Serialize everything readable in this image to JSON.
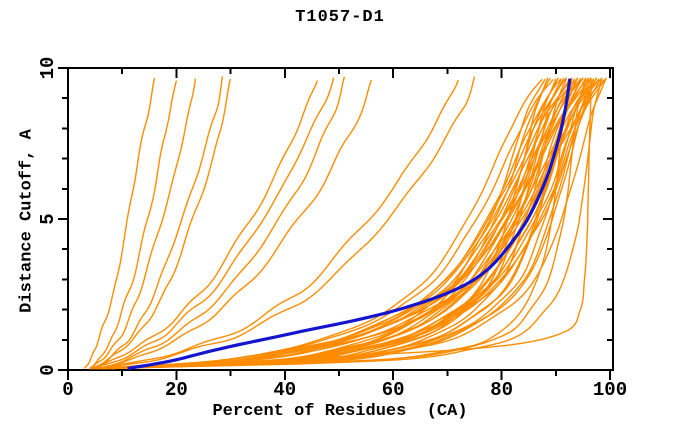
{
  "title": "T1057-D1",
  "colors": {
    "background": "#ffffff",
    "axis": "#000000",
    "text": "#000000",
    "model_line": "#ff8c00",
    "highlight_line": "#1515cf"
  },
  "chart_data": {
    "type": "line",
    "title": "T1057-D1",
    "xlabel": "Percent of Residues  (CA)",
    "ylabel": "Distance Cutoff, A",
    "xlim": [
      0,
      100.5
    ],
    "ylim": [
      0,
      10
    ],
    "grid": false,
    "legend": "none",
    "x_major_ticks": [
      0,
      20,
      40,
      60,
      80,
      100
    ],
    "x_minor_ticks": [
      10,
      30,
      50,
      70,
      90
    ],
    "x_tick_labels": [
      "0",
      "20",
      "40",
      "60",
      "80",
      "100"
    ],
    "y_major_ticks": [
      0,
      5,
      10
    ],
    "y_minor_ticks": [
      1,
      2,
      3,
      4,
      6,
      7,
      8,
      9
    ],
    "y_tick_labels": [
      "0",
      "5",
      "10"
    ],
    "y_levels": [
      0.05,
      0.3,
      0.7,
      1.2,
      2,
      3,
      4.5,
      6,
      7.5,
      8.7,
      9.65
    ],
    "series": [
      {
        "id": "m01",
        "jag": 1.0,
        "x": [
          4,
          27.4,
          39.9,
          49.9,
          59.1,
          66.2,
          72.1,
          76.6,
          80.4,
          83.7,
          87.5
        ]
      },
      {
        "id": "m02",
        "jag": 1.0,
        "x": [
          6,
          36.3,
          49.5,
          58.5,
          65.9,
          71.6,
          76.5,
          80.2,
          82.7,
          85.1,
          88
        ]
      },
      {
        "id": "m03",
        "jag": 1.0,
        "x": [
          5,
          42.6,
          56.8,
          65.1,
          71.8,
          76.8,
          80.2,
          82.7,
          84.8,
          86.4,
          88.5
        ]
      },
      {
        "id": "m04",
        "jag": 1.0,
        "x": [
          7,
          37.3,
          50.5,
          59.5,
          66.9,
          72.6,
          77.5,
          81.2,
          83.7,
          86.1,
          89
        ]
      },
      {
        "id": "m05",
        "jag": 1.0,
        "x": [
          4,
          27.9,
          40.8,
          51,
          60.4,
          67.7,
          73.7,
          78.4,
          82.2,
          85.7,
          89.5
        ]
      },
      {
        "id": "m06",
        "jag": 1.0,
        "x": [
          6,
          43.8,
          58.1,
          66.5,
          73.2,
          78.2,
          81.6,
          84.1,
          86.2,
          87.9,
          90
        ]
      },
      {
        "id": "m07",
        "jag": 1.0,
        "x": [
          5,
          36.6,
          50.3,
          59.7,
          67.4,
          73.4,
          78.5,
          82.4,
          85,
          87.5,
          90.5
        ]
      },
      {
        "id": "m08",
        "jag": 1.0,
        "x": [
          8,
          31.2,
          43.7,
          53.7,
          62.8,
          69.8,
          75.7,
          80.2,
          83.9,
          87.3,
          91
        ]
      },
      {
        "id": "m09",
        "jag": 1.0,
        "x": [
          4,
          43.2,
          57.9,
          66.6,
          73.6,
          78.8,
          82.3,
          84.9,
          87.1,
          88.8,
          91
        ]
      },
      {
        "id": "m10",
        "jag": 1.0,
        "x": [
          6,
          37.6,
          51.3,
          60.7,
          68.4,
          74.4,
          79.5,
          83.4,
          86,
          88.5,
          91.5
        ]
      },
      {
        "id": "m11",
        "jag": 1.0,
        "x": [
          5,
          29.4,
          42.4,
          52.9,
          62.4,
          69.8,
          75.9,
          80.7,
          84.6,
          88.1,
          92
        ]
      },
      {
        "id": "m12",
        "jag": 1.0,
        "x": [
          7,
          45.3,
          59.7,
          68.2,
          75,
          80.1,
          83.5,
          86.1,
          88.2,
          89.9,
          92
        ]
      },
      {
        "id": "m13",
        "jag": 1.0,
        "x": [
          6,
          38,
          51.8,
          61.4,
          69.1,
          75.2,
          80.4,
          84.3,
          86.9,
          89.5,
          92.5
        ]
      },
      {
        "id": "m14",
        "jag": 1.0,
        "x": [
          4,
          28.9,
          42.3,
          53,
          62.7,
          70.3,
          76.5,
          81.4,
          85.4,
          89,
          93
        ]
      },
      {
        "id": "m15",
        "jag": 1.0,
        "x": [
          8,
          54.8,
          71.8,
          79.4,
          83.7,
          86.6,
          88.8,
          90,
          90.9,
          91.7,
          93
        ]
      },
      {
        "id": "m16",
        "jag": 1.0,
        "x": [
          5,
          37.7,
          51.9,
          61.6,
          69.6,
          75.8,
          81.1,
          85.1,
          87.8,
          90.4,
          93.5
        ]
      },
      {
        "id": "m17",
        "jag": 1.0,
        "x": [
          6,
          30.5,
          43.6,
          54.1,
          63.8,
          71.2,
          77.3,
          82.1,
          86.1,
          89.6,
          93.5
        ]
      },
      {
        "id": "m18",
        "jag": 1.0,
        "x": [
          7,
          46.2,
          60.9,
          69.6,
          76.6,
          81.8,
          85.3,
          87.9,
          90.1,
          91.8,
          94
        ]
      },
      {
        "id": "m19",
        "jag": 1.0,
        "x": [
          4,
          37.3,
          51.7,
          61.6,
          69.7,
          76,
          81.4,
          85.5,
          88.2,
          90.9,
          94
        ]
      },
      {
        "id": "m20",
        "jag": 1.0,
        "x": [
          6,
          30.8,
          44.1,
          54.7,
          64.4,
          71.9,
          78.1,
          83,
          87,
          90.5,
          94.5
        ]
      },
      {
        "id": "m21",
        "jag": 1.0,
        "x": [
          5,
          45.3,
          60.5,
          69.4,
          76.6,
          82,
          85.6,
          88.2,
          90.5,
          92.3,
          94.5
        ]
      },
      {
        "id": "m22",
        "jag": 1.0,
        "x": [
          8,
          40.2,
          54.1,
          63.7,
          71.5,
          77.6,
          82.8,
          86.7,
          89.3,
          92,
          95
        ]
      },
      {
        "id": "m23",
        "jag": 1.0,
        "x": [
          6,
          30.9,
          44.3,
          55,
          64.7,
          72.3,
          78.5,
          83.4,
          87.4,
          91,
          95
        ]
      },
      {
        "id": "m24",
        "jag": 1.0,
        "x": [
          4,
          54.3,
          72.6,
          80.9,
          85.4,
          88.6,
          90.9,
          92.3,
          93.2,
          94.1,
          95.5
        ]
      },
      {
        "id": "m25",
        "jag": 1.0,
        "x": [
          7,
          39.7,
          53.9,
          63.6,
          71.6,
          77.8,
          83.1,
          87.1,
          89.8,
          92.4,
          95.5
        ]
      },
      {
        "id": "m26",
        "jag": 1.0,
        "x": [
          5,
          30.5,
          44.1,
          55.1,
          65.1,
          72.8,
          79.2,
          84.2,
          88.3,
          91.9,
          96
        ]
      },
      {
        "id": "m27",
        "jag": 1.0,
        "x": [
          6,
          46.5,
          61.8,
          70.8,
          78,
          83.4,
          87,
          89.7,
          92,
          93.8,
          96
        ]
      },
      {
        "id": "m28",
        "jag": 1.0,
        "x": [
          8,
          40.7,
          54.9,
          64.6,
          72.6,
          78.8,
          84.1,
          88.1,
          90.8,
          93.4,
          96.5
        ]
      },
      {
        "id": "m29",
        "jag": 1.0,
        "x": [
          4,
          29.9,
          43.8,
          54.9,
          65.1,
          72.9,
          79.4,
          84.5,
          88.6,
          92.3,
          96.5
        ]
      },
      {
        "id": "m30",
        "jag": 1.0,
        "x": [
          6,
          47,
          62.4,
          71.5,
          78.8,
          84.3,
          87.9,
          90.6,
          92.9,
          94.7,
          97
        ]
      },
      {
        "id": "m31",
        "jag": 1.0,
        "x": [
          5,
          39,
          53.8,
          63.9,
          72.2,
          78.6,
          84.1,
          88.3,
          91,
          93.8,
          97
        ]
      },
      {
        "id": "m32",
        "jag": 1.0,
        "x": [
          7,
          32.3,
          45.9,
          56.8,
          66.7,
          74.4,
          80.8,
          85.7,
          89.8,
          93.4,
          97.5
        ]
      },
      {
        "id": "m33",
        "jag": 1.0,
        "x": [
          6,
          47.2,
          62.7,
          71.9,
          79.2,
          84.7,
          88.4,
          91.1,
          93.4,
          95.2,
          97.5
        ]
      },
      {
        "id": "m34",
        "jag": 1.0,
        "x": [
          4,
          38.8,
          53.8,
          64.2,
          72.6,
          79.2,
          84.8,
          89.1,
          91.9,
          94.7,
          98
        ]
      },
      {
        "id": "m35",
        "jag": 1.0,
        "x": [
          8,
          33.2,
          46.7,
          57.5,
          67.4,
          75.1,
          81.4,
          86.3,
          90.4,
          94,
          98
        ]
      },
      {
        "id": "m36",
        "jag": 1.0,
        "x": [
          5,
          56.4,
          75.1,
          83.5,
          88.2,
          91.5,
          93.8,
          95.2,
          96.2,
          97.1,
          98.5
        ]
      },
      {
        "id": "m37",
        "jag": 1.0,
        "x": [
          6,
          40.2,
          55,
          65.2,
          73.5,
          80,
          85.6,
          89.7,
          92.5,
          95.3,
          98.5
        ]
      },
      {
        "id": "m38",
        "jag": 1.0,
        "x": [
          7,
          32.8,
          46.6,
          57.6,
          67.7,
          75.5,
          82,
          87,
          91.2,
          94.9,
          99
        ]
      },
      {
        "id": "m39",
        "jag": 1.0,
        "x": [
          5,
          39.8,
          54.8,
          65.2,
          73.6,
          80.2,
          85.8,
          90.1,
          92.9,
          95.7,
          99
        ]
      },
      {
        "id": "m40",
        "jag": 1.0,
        "x": [
          6,
          48,
          63.8,
          73.2,
          80.6,
          86.2,
          90,
          92.8,
          95.1,
          97,
          99.3
        ]
      },
      {
        "id": "b01",
        "jag": 2.2,
        "x": [
          3,
          4,
          5,
          6,
          7.5,
          9,
          10.5,
          12,
          13.5,
          15,
          16
        ]
      },
      {
        "id": "b02",
        "jag": 2.2,
        "x": [
          4,
          5.5,
          7,
          8.5,
          10,
          12,
          14,
          16,
          17.5,
          19,
          20
        ]
      },
      {
        "id": "b03",
        "jag": 2.2,
        "x": [
          4,
          6,
          8,
          10,
          12,
          14,
          16.5,
          19,
          21,
          22.5,
          23.5
        ]
      },
      {
        "id": "b04",
        "jag": 2.2,
        "x": [
          5,
          7,
          9.5,
          12,
          14.5,
          17,
          20,
          23,
          25.5,
          27.5,
          28.5
        ]
      },
      {
        "id": "b05",
        "jag": 2.2,
        "x": [
          4,
          7,
          10,
          13,
          16,
          19,
          22,
          25,
          27.5,
          29,
          30
        ]
      },
      {
        "id": "b06",
        "jag": 2.2,
        "x": [
          4,
          8,
          12,
          16.5,
          21.5,
          26.5,
          32,
          37,
          41,
          44,
          46
        ]
      },
      {
        "id": "b07",
        "jag": 2.2,
        "x": [
          5,
          9,
          13.5,
          18,
          23,
          28.5,
          34,
          39.5,
          43.5,
          47,
          49
        ]
      },
      {
        "id": "b08",
        "jag": 2.2,
        "x": [
          6,
          10,
          15,
          20,
          25.5,
          31,
          37,
          42.5,
          46.5,
          49.5,
          51
        ]
      },
      {
        "id": "b09",
        "jag": 2.2,
        "x": [
          5,
          11,
          16.5,
          22,
          28,
          34,
          40.5,
          46.5,
          51,
          54.5,
          56
        ]
      },
      {
        "id": "b10",
        "jag": 2.2,
        "x": [
          5,
          14,
          22,
          30,
          38,
          45.5,
          53,
          60,
          65.5,
          69.5,
          72
        ]
      },
      {
        "id": "b11",
        "jag": 2.2,
        "x": [
          6,
          15,
          23.5,
          32,
          40.5,
          48.5,
          56.5,
          63.5,
          69,
          73,
          75
        ]
      },
      {
        "id": "outlier",
        "jag": 0.6,
        "x": [
          8,
          35,
          74,
          91,
          94.5,
          95.3,
          95.8,
          96,
          96.2,
          96.4,
          96.5
        ]
      }
    ],
    "highlight_series": {
      "id": "highlighted-model",
      "jag": 0,
      "x": [
        11,
        19,
        28,
        41,
        61,
        75,
        83,
        87.5,
        90.3,
        91.8,
        92.6
      ]
    }
  }
}
